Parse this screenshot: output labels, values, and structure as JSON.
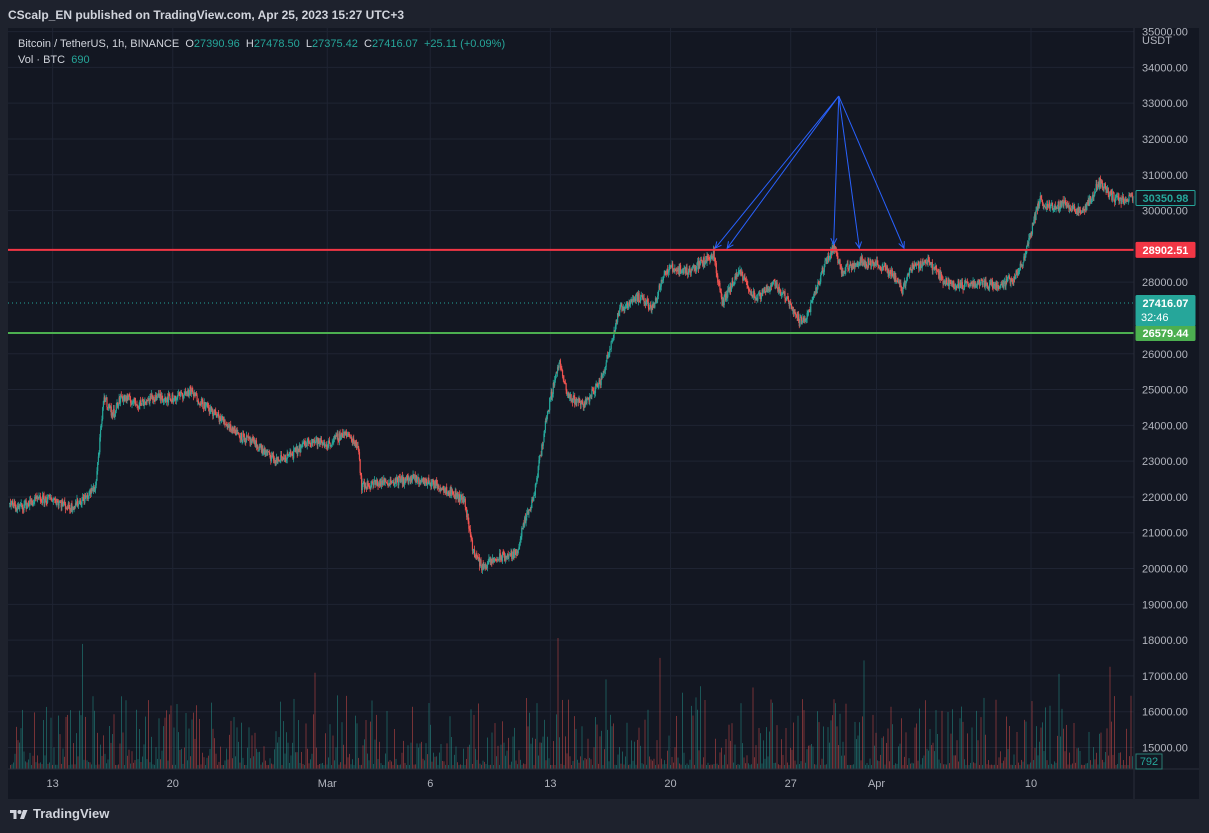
{
  "header": {
    "published": "CScalp_EN published on TradingView.com, Apr 25, 2023 15:27 UTC+3"
  },
  "legend": {
    "symbol": "Bitcoin / TetherUS, 1h, BINANCE",
    "o_label": "O",
    "o": "27390.96",
    "h_label": "H",
    "h": "27478.50",
    "l_label": "L",
    "l": "27375.42",
    "c_label": "C",
    "c": "27416.07",
    "change": "+25.11 (+0.09%)",
    "vol_label": "Vol · BTC",
    "vol": "690"
  },
  "footer": {
    "brand": "TradingView",
    "logo_icon": "tradingview-logo-icon"
  },
  "colors": {
    "up": "#26a69a",
    "down": "#ef5350",
    "resistance": "#f23645",
    "support": "#4caf50",
    "arrows": "#2962ff"
  },
  "chart_data": {
    "type": "candlestick",
    "currency": "USDT",
    "y_ticks": [
      "35000.00",
      "34000.00",
      "33000.00",
      "32000.00",
      "31000.00",
      "30000.00",
      "28000.00",
      "26000.00",
      "25000.00",
      "24000.00",
      "23000.00",
      "22000.00",
      "21000.00",
      "20000.00",
      "19000.00",
      "18000.00",
      "17000.00",
      "16000.00",
      "15000.00"
    ],
    "ylim": [
      14400,
      35100
    ],
    "x_ticks": [
      {
        "label": "13",
        "day": 13
      },
      {
        "label": "20",
        "day": 20
      },
      {
        "label": "Mar",
        "day": 29
      },
      {
        "label": "6",
        "day": 35
      },
      {
        "label": "13",
        "day": 42
      },
      {
        "label": "20",
        "day": 49
      },
      {
        "label": "27",
        "day": 56
      },
      {
        "label": "Apr",
        "day": 61
      },
      {
        "label": "10",
        "day": 70
      }
    ],
    "x_range_days": [
      10.4,
      76.0
    ],
    "price_path": [
      [
        10.5,
        21800
      ],
      [
        11,
        21700
      ],
      [
        12,
        21900
      ],
      [
        13,
        21950
      ],
      [
        14,
        21700
      ],
      [
        15,
        22000
      ],
      [
        15.5,
        22300
      ],
      [
        16,
        24800
      ],
      [
        16.5,
        24300
      ],
      [
        17,
        24800
      ],
      [
        18,
        24600
      ],
      [
        19,
        24800
      ],
      [
        20,
        24750
      ],
      [
        21,
        24950
      ],
      [
        22,
        24500
      ],
      [
        23,
        24100
      ],
      [
        24,
        23700
      ],
      [
        25,
        23400
      ],
      [
        26,
        23000
      ],
      [
        27,
        23200
      ],
      [
        28,
        23600
      ],
      [
        29,
        23450
      ],
      [
        30,
        23800
      ],
      [
        30.8,
        23450
      ],
      [
        31,
        22300
      ],
      [
        32,
        22400
      ],
      [
        33,
        22450
      ],
      [
        34,
        22500
      ],
      [
        35,
        22400
      ],
      [
        36,
        22200
      ],
      [
        37,
        21900
      ],
      [
        37.5,
        20500
      ],
      [
        38,
        20050
      ],
      [
        39,
        20300
      ],
      [
        40,
        20400
      ],
      [
        40.5,
        21300
      ],
      [
        41,
        21900
      ],
      [
        41.8,
        24300
      ],
      [
        42.5,
        25800
      ],
      [
        43,
        24800
      ],
      [
        44,
        24600
      ],
      [
        45,
        25300
      ],
      [
        46,
        27200
      ],
      [
        47,
        27600
      ],
      [
        48,
        27300
      ],
      [
        48.5,
        28100
      ],
      [
        49,
        28400
      ],
      [
        50,
        28300
      ],
      [
        51,
        28600
      ],
      [
        51.5,
        28800
      ],
      [
        52,
        27400
      ],
      [
        53,
        28300
      ],
      [
        54,
        27500
      ],
      [
        55,
        28000
      ],
      [
        56,
        27400
      ],
      [
        56.5,
        26900
      ],
      [
        57,
        27100
      ],
      [
        58,
        28500
      ],
      [
        58.5,
        29000
      ],
      [
        59,
        28300
      ],
      [
        60,
        28600
      ],
      [
        61,
        28500
      ],
      [
        62,
        28200
      ],
      [
        62.5,
        27800
      ],
      [
        63,
        28400
      ],
      [
        64,
        28600
      ],
      [
        65,
        28000
      ],
      [
        66,
        27900
      ],
      [
        67,
        28000
      ],
      [
        68,
        27900
      ],
      [
        69,
        28100
      ],
      [
        69.5,
        28500
      ],
      [
        70,
        29400
      ],
      [
        70.5,
        30300
      ],
      [
        71,
        30100
      ],
      [
        72,
        30200
      ],
      [
        73,
        29900
      ],
      [
        74,
        30800
      ],
      [
        74.5,
        30500
      ],
      [
        75,
        30300
      ],
      [
        76,
        30350
      ]
    ],
    "hlines": [
      {
        "name": "resistance",
        "value": 28902.51,
        "label": "28902.51"
      },
      {
        "name": "support",
        "value": 26579.44,
        "label": "26579.44"
      },
      {
        "name": "last-price",
        "value": 27416.07,
        "label": "27416.07",
        "sub": "32:46"
      }
    ],
    "last_close_label": "30350.98",
    "volume_last_label": "792",
    "annotation_apex": {
      "day": 58.8,
      "price": 33200
    },
    "annotation_targets": [
      {
        "day": 51.6,
        "price": 28950
      },
      {
        "day": 52.3,
        "price": 28950
      },
      {
        "day": 58.5,
        "price": 29050
      },
      {
        "day": 60.0,
        "price": 28950
      },
      {
        "day": 62.6,
        "price": 28950
      }
    ]
  }
}
